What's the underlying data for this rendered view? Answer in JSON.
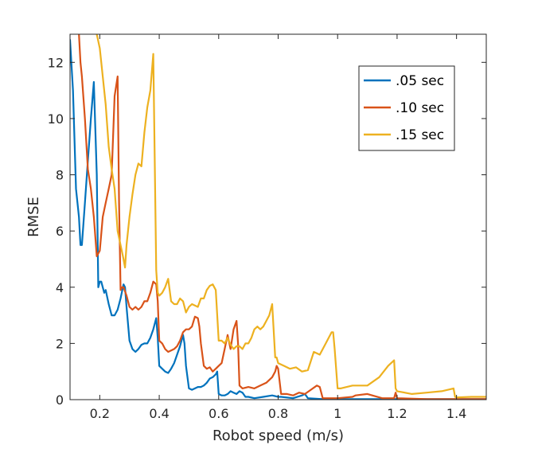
{
  "chart_data": {
    "type": "line",
    "xlabel": "Robot speed (m/s)",
    "ylabel": "RMSE",
    "xlim": [
      0.1,
      1.5
    ],
    "ylim": [
      0,
      13
    ],
    "xticks": [
      {
        "value": 0.2,
        "label": "0.2"
      },
      {
        "value": 0.4,
        "label": "0.4"
      },
      {
        "value": 0.6,
        "label": "0.6"
      },
      {
        "value": 0.8,
        "label": "0.8"
      },
      {
        "value": 1.0,
        "label": "1"
      },
      {
        "value": 1.2,
        "label": "1.2"
      },
      {
        "value": 1.4,
        "label": "1.4"
      }
    ],
    "yticks": [
      {
        "value": 0,
        "label": "0"
      },
      {
        "value": 2,
        "label": "2"
      },
      {
        "value": 4,
        "label": "4"
      },
      {
        "value": 6,
        "label": "6"
      },
      {
        "value": 8,
        "label": "8"
      },
      {
        "value": 10,
        "label": "10"
      },
      {
        "value": 12,
        "label": "12"
      }
    ],
    "grid": false,
    "legend_position": "top-right",
    "series": [
      {
        "name": ".05 sec",
        "color": "#0072BD",
        "x": [
          0.1,
          0.11,
          0.12,
          0.13,
          0.135,
          0.14,
          0.15,
          0.16,
          0.17,
          0.18,
          0.19,
          0.195,
          0.2,
          0.205,
          0.21,
          0.215,
          0.22,
          0.23,
          0.24,
          0.25,
          0.26,
          0.27,
          0.28,
          0.285,
          0.29,
          0.3,
          0.31,
          0.32,
          0.33,
          0.34,
          0.35,
          0.36,
          0.37,
          0.38,
          0.39,
          0.395,
          0.4,
          0.41,
          0.42,
          0.43,
          0.44,
          0.45,
          0.46,
          0.47,
          0.48,
          0.485,
          0.49,
          0.5,
          0.51,
          0.52,
          0.53,
          0.54,
          0.55,
          0.56,
          0.57,
          0.58,
          0.59,
          0.595,
          0.6,
          0.61,
          0.62,
          0.63,
          0.64,
          0.65,
          0.66,
          0.67,
          0.68,
          0.69,
          0.7,
          0.72,
          0.75,
          0.78,
          0.8,
          0.81,
          0.85,
          0.88,
          0.89,
          0.9,
          0.95,
          1.0,
          1.1,
          1.2,
          1.3,
          1.4,
          1.5
        ],
        "values": [
          12.8,
          11.0,
          7.5,
          6.5,
          5.5,
          5.5,
          7.0,
          8.5,
          10.0,
          11.3,
          8.0,
          4.0,
          4.2,
          4.2,
          4.0,
          3.8,
          3.9,
          3.4,
          3.0,
          3.0,
          3.2,
          3.6,
          4.1,
          4.0,
          3.3,
          2.1,
          1.8,
          1.7,
          1.8,
          1.95,
          2.0,
          2.0,
          2.2,
          2.5,
          2.9,
          2.2,
          1.2,
          1.1,
          1.0,
          0.95,
          1.1,
          1.3,
          1.6,
          1.9,
          2.3,
          2.0,
          1.2,
          0.4,
          0.35,
          0.4,
          0.45,
          0.45,
          0.5,
          0.6,
          0.75,
          0.8,
          0.9,
          1.0,
          0.2,
          0.15,
          0.15,
          0.2,
          0.3,
          0.25,
          0.2,
          0.3,
          0.25,
          0.1,
          0.1,
          0.05,
          0.1,
          0.15,
          0.1,
          0.1,
          0.05,
          0.15,
          0.2,
          0.05,
          0.02,
          0.02,
          0.02,
          0.02,
          0.02,
          0.02,
          0.02
        ]
      },
      {
        "name": ".10 sec",
        "color": "#D95319",
        "x": [
          0.13,
          0.135,
          0.14,
          0.15,
          0.16,
          0.17,
          0.18,
          0.19,
          0.2,
          0.21,
          0.22,
          0.23,
          0.24,
          0.25,
          0.26,
          0.265,
          0.27,
          0.275,
          0.28,
          0.29,
          0.3,
          0.31,
          0.32,
          0.33,
          0.34,
          0.35,
          0.36,
          0.37,
          0.38,
          0.39,
          0.395,
          0.4,
          0.41,
          0.42,
          0.43,
          0.44,
          0.45,
          0.46,
          0.47,
          0.48,
          0.49,
          0.5,
          0.51,
          0.52,
          0.53,
          0.535,
          0.54,
          0.55,
          0.56,
          0.57,
          0.58,
          0.59,
          0.6,
          0.61,
          0.62,
          0.63,
          0.64,
          0.65,
          0.66,
          0.665,
          0.67,
          0.68,
          0.7,
          0.72,
          0.74,
          0.76,
          0.78,
          0.79,
          0.795,
          0.8,
          0.81,
          0.83,
          0.85,
          0.87,
          0.89,
          0.91,
          0.93,
          0.94,
          0.95,
          1.0,
          1.05,
          1.06,
          1.1,
          1.15,
          1.19,
          1.195,
          1.2,
          1.3,
          1.4,
          1.5
        ],
        "values": [
          13.0,
          12.0,
          11.5,
          10.0,
          8.2,
          7.5,
          6.5,
          5.1,
          5.3,
          6.5,
          7.0,
          7.5,
          8.0,
          10.8,
          11.5,
          7.0,
          3.9,
          4.0,
          4.0,
          3.7,
          3.3,
          3.2,
          3.3,
          3.2,
          3.3,
          3.5,
          3.5,
          3.8,
          4.2,
          4.1,
          3.5,
          2.1,
          2.0,
          1.8,
          1.7,
          1.75,
          1.8,
          1.9,
          2.1,
          2.4,
          2.5,
          2.5,
          2.6,
          2.95,
          2.9,
          2.6,
          2.0,
          1.2,
          1.1,
          1.15,
          1.0,
          1.1,
          1.2,
          1.3,
          1.8,
          2.3,
          1.8,
          2.5,
          2.8,
          2.0,
          0.5,
          0.4,
          0.45,
          0.4,
          0.5,
          0.6,
          0.8,
          1.0,
          1.2,
          1.1,
          0.2,
          0.2,
          0.15,
          0.25,
          0.2,
          0.35,
          0.5,
          0.45,
          0.05,
          0.05,
          0.1,
          0.15,
          0.2,
          0.05,
          0.05,
          0.25,
          0.05,
          0.02,
          0.02,
          0.02
        ]
      },
      {
        "name": ".15 sec",
        "color": "#EDB120",
        "x": [
          0.18,
          0.19,
          0.2,
          0.21,
          0.22,
          0.23,
          0.24,
          0.25,
          0.26,
          0.27,
          0.28,
          0.285,
          0.29,
          0.3,
          0.31,
          0.32,
          0.33,
          0.34,
          0.35,
          0.36,
          0.37,
          0.38,
          0.39,
          0.395,
          0.4,
          0.41,
          0.42,
          0.43,
          0.44,
          0.45,
          0.46,
          0.47,
          0.48,
          0.49,
          0.5,
          0.51,
          0.52,
          0.53,
          0.54,
          0.55,
          0.56,
          0.57,
          0.58,
          0.59,
          0.6,
          0.61,
          0.62,
          0.63,
          0.64,
          0.65,
          0.66,
          0.67,
          0.68,
          0.69,
          0.7,
          0.71,
          0.72,
          0.73,
          0.74,
          0.75,
          0.76,
          0.77,
          0.78,
          0.79,
          0.795,
          0.8,
          0.82,
          0.84,
          0.86,
          0.88,
          0.9,
          0.92,
          0.94,
          0.96,
          0.98,
          0.985,
          0.99,
          1.0,
          1.005,
          1.01,
          1.05,
          1.1,
          1.14,
          1.17,
          1.19,
          1.195,
          1.2,
          1.25,
          1.3,
          1.35,
          1.39,
          1.395,
          1.4,
          1.45,
          1.5
        ],
        "values": [
          14.0,
          13.0,
          12.5,
          11.5,
          10.5,
          9.0,
          8.2,
          7.5,
          6.0,
          5.5,
          5.0,
          4.7,
          5.5,
          6.5,
          7.3,
          8.0,
          8.4,
          8.3,
          9.5,
          10.4,
          11.0,
          12.3,
          4.6,
          3.8,
          3.7,
          3.8,
          4.0,
          4.3,
          3.5,
          3.4,
          3.4,
          3.6,
          3.5,
          3.1,
          3.3,
          3.4,
          3.35,
          3.3,
          3.6,
          3.6,
          3.9,
          4.05,
          4.1,
          3.9,
          2.1,
          2.1,
          2.0,
          2.2,
          1.95,
          1.8,
          1.9,
          1.9,
          1.8,
          2.0,
          2.0,
          2.2,
          2.5,
          2.6,
          2.5,
          2.6,
          2.8,
          3.0,
          3.4,
          1.5,
          1.5,
          1.3,
          1.2,
          1.1,
          1.15,
          1.0,
          1.05,
          1.7,
          1.6,
          2.0,
          2.4,
          2.4,
          1.8,
          0.4,
          0.4,
          0.4,
          0.5,
          0.5,
          0.8,
          1.2,
          1.4,
          0.4,
          0.3,
          0.2,
          0.25,
          0.3,
          0.4,
          0.1,
          0.08,
          0.1,
          0.1
        ]
      }
    ]
  }
}
